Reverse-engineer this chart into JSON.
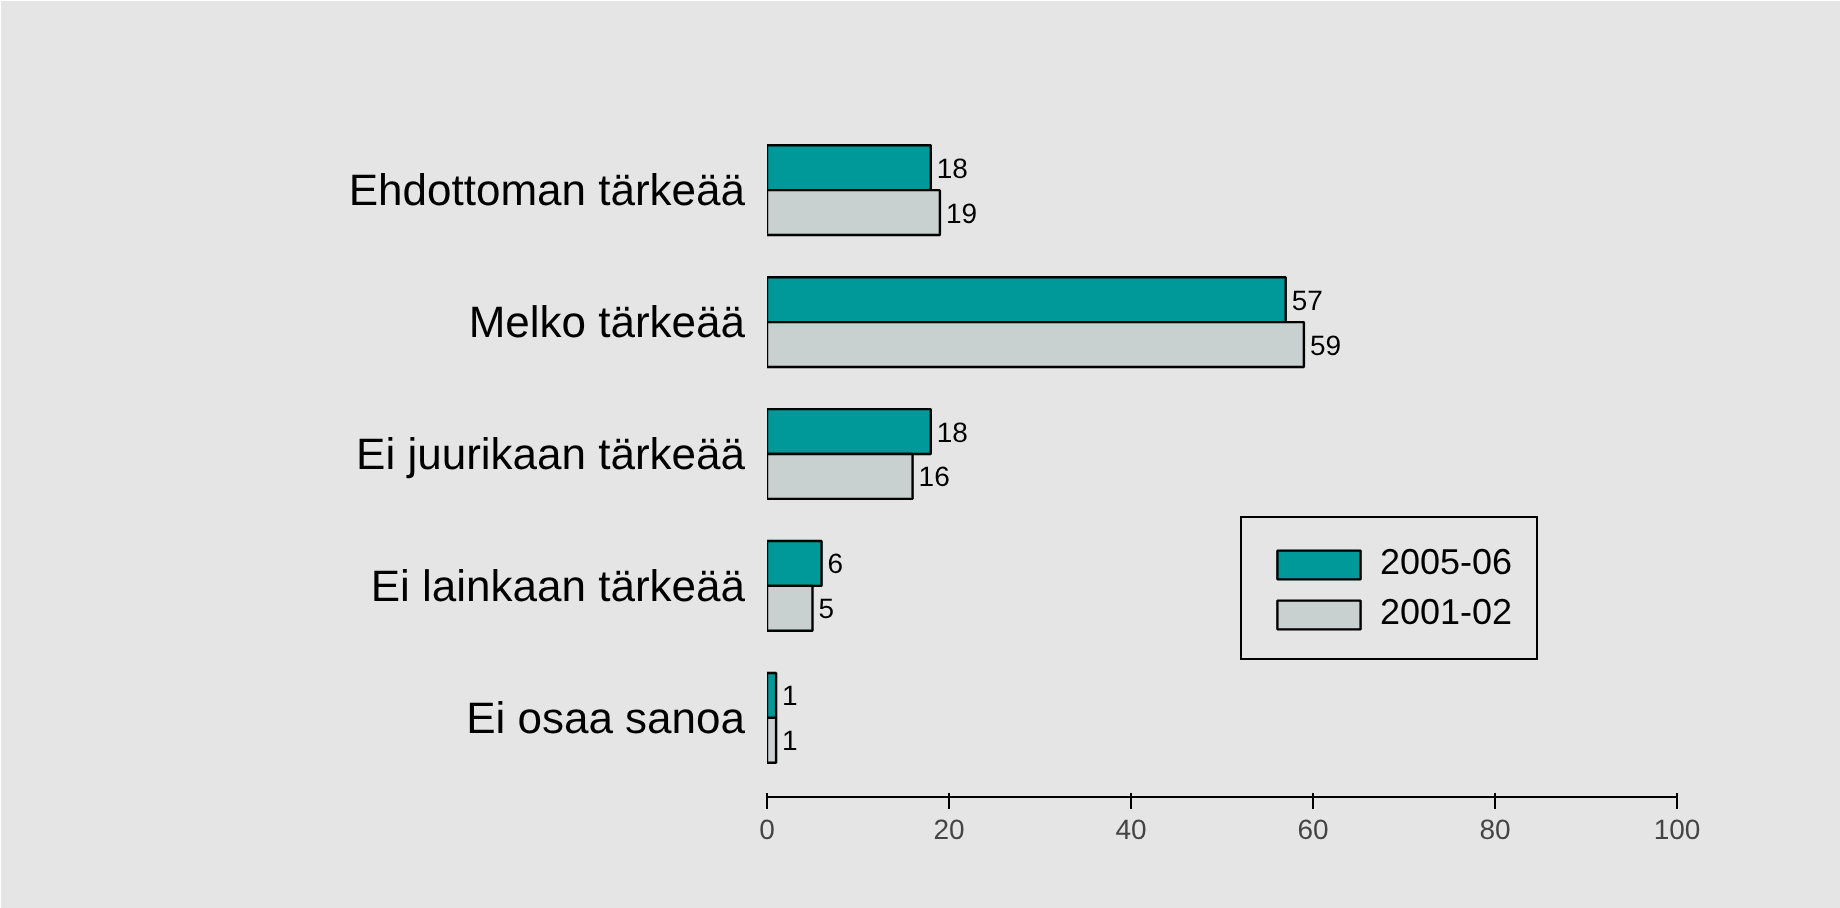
{
  "chart_data": {
    "type": "bar",
    "orientation": "horizontal",
    "categories": [
      "Ehdottoman tärkeää",
      "Melko tärkeää",
      "Ei juurikaan tärkeää",
      "Ei lainkaan tärkeää",
      "Ei osaa sanoa"
    ],
    "series": [
      {
        "name": "2005-06",
        "color": "#009999",
        "values": [
          18,
          57,
          18,
          6,
          1
        ]
      },
      {
        "name": "2001-02",
        "color": "#c8d0d0",
        "values": [
          19,
          59,
          16,
          5,
          1
        ]
      }
    ],
    "xlim": [
      0,
      100
    ],
    "xticks": [
      0,
      20,
      40,
      60,
      80,
      100
    ],
    "data_labels": true,
    "legend": "right"
  }
}
